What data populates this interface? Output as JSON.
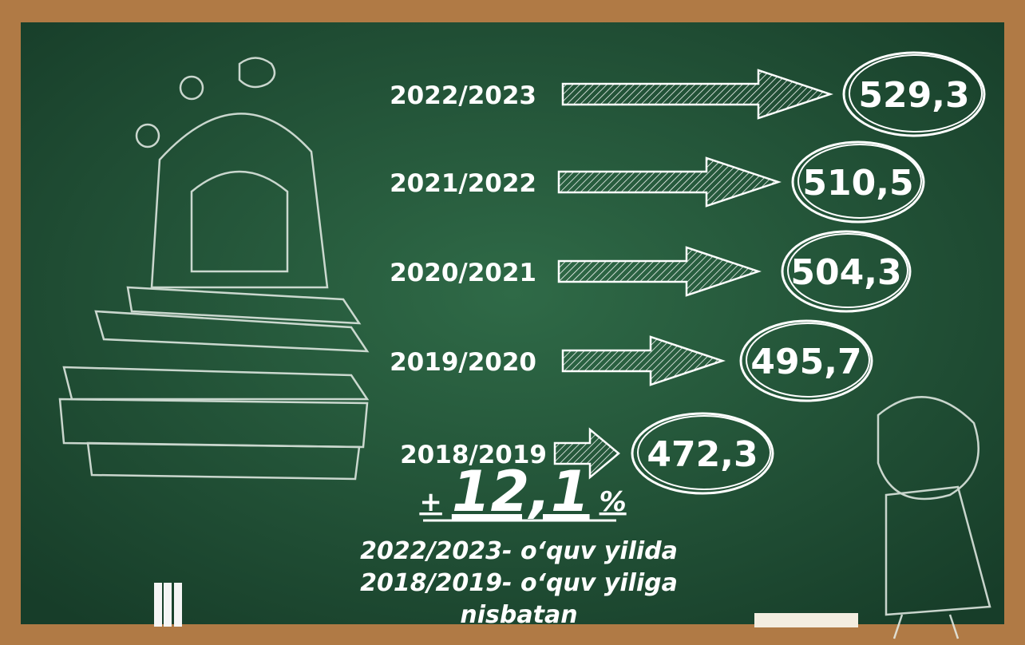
{
  "rows": [
    {
      "year": "2022/2023",
      "value": "529,3"
    },
    {
      "year": "2021/2022",
      "value": "510,5"
    },
    {
      "year": "2020/2021",
      "value": "504,3"
    },
    {
      "year": "2019/2020",
      "value": "495,7"
    },
    {
      "year": "2018/2019",
      "value": "472,3"
    }
  ],
  "growth": {
    "sign": "+",
    "number": "12,1",
    "unit": "%"
  },
  "note": [
    "2022/2023- o‘quv yilida",
    "2018/2019- o‘quv yiliga",
    "nisbatan"
  ]
}
